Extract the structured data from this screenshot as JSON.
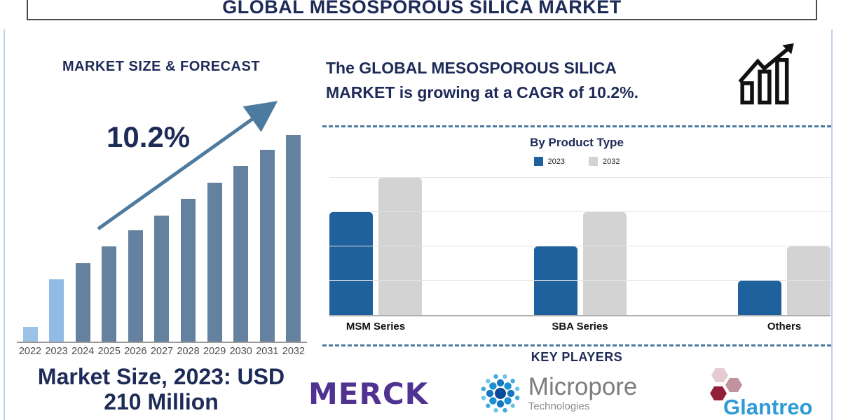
{
  "banner": {
    "title": "GLOBAL MESOSPOROUS SILICA MARKET"
  },
  "left_panel": {
    "heading": "MARKET SIZE & FORECAST",
    "cagr_label": "10.2%",
    "market_size_lines": [
      "Market Size, 2023: USD",
      "210 Million"
    ]
  },
  "right_panel": {
    "cagr_lines": [
      "The GLOBAL MESOSPOROUS SILICA",
      "MARKET is growing at a CAGR of 10.2%."
    ],
    "key_players_title": "KEY PLAYERS",
    "key_players": [
      {
        "name": "MERCK"
      },
      {
        "name": "Micropore",
        "subtitle": "Technologies"
      },
      {
        "name": "Glantreo"
      }
    ]
  },
  "colors": {
    "navy_text": "#1e2b58",
    "forecast_bar": "#64829F",
    "forecast_bar_highlight": [
      "#9CC2E5",
      "#8FBBE4"
    ],
    "arrow": "#4d7ba0",
    "dashed_separator": "#4d7ba0",
    "product_2023": "#1F619C",
    "product_2032": "#D3D3D3",
    "merck_purple": "#503291",
    "micropore_gray": "#7c7c7c",
    "glantreo_blue": "#2e9bd6"
  },
  "chart_data": [
    {
      "type": "bar",
      "title": "MARKET SIZE & FORECAST",
      "categories": [
        "2022",
        "2023",
        "2024",
        "2025",
        "2026",
        "2027",
        "2028",
        "2029",
        "2030",
        "2031",
        "2032"
      ],
      "values_relative_pct": [
        7,
        30,
        38,
        46,
        54,
        61,
        69,
        77,
        85,
        93,
        100
      ],
      "value_note": "no y-axis shown; values are relative bar heights (% of 2032 bar)",
      "bar_colors": [
        "#9CC2E5",
        "#8FBBE4",
        "#64829F",
        "#64829F",
        "#64829F",
        "#64829F",
        "#64829F",
        "#64829F",
        "#64829F",
        "#64829F",
        "#64829F"
      ],
      "annotation": "10.2%",
      "footnote": "Market Size, 2023: USD 210 Million",
      "xlabel": "",
      "ylabel": "",
      "grid": false
    },
    {
      "type": "bar",
      "title": "By Product Type",
      "categories": [
        "MSM Series",
        "SBA Series",
        "Others"
      ],
      "series": [
        {
          "name": "2023",
          "color": "#1F619C",
          "values": [
            3,
            2,
            1
          ]
        },
        {
          "name": "2032",
          "color": "#D3D3D3",
          "values": [
            4,
            3,
            2
          ]
        }
      ],
      "value_note": "no y-axis labels; values in gridline units (0-4)",
      "ylim": [
        0,
        4
      ],
      "grid": true,
      "legend_position": "top"
    }
  ]
}
